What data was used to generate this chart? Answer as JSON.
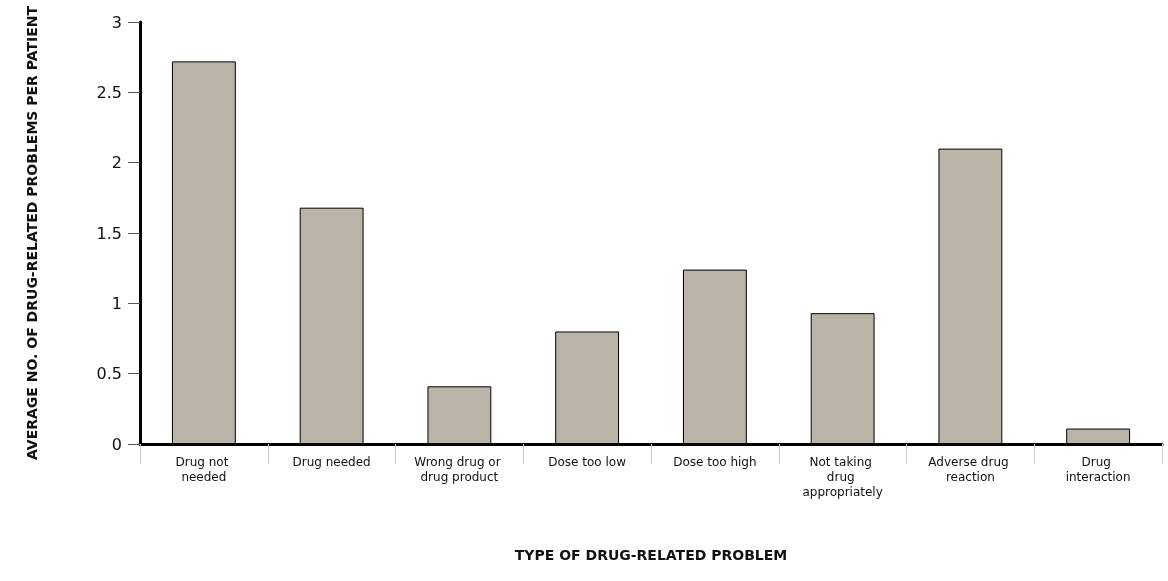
{
  "chart_data": {
    "type": "bar",
    "categories": [
      "Drug not needed",
      "Drug needed",
      "Wrong drug or drug product",
      "Dose too low",
      "Dose too high",
      "Not taking drug appropriately",
      "Adverse drug reaction",
      "Drug interaction"
    ],
    "values": [
      2.72,
      1.68,
      0.41,
      0.8,
      1.24,
      0.93,
      2.1,
      0.11
    ],
    "color": "#bbb3a7",
    "xlabel": "TYPE OF DRUG-RELATED PROBLEM",
    "ylabel": "AVERAGE NO. OF DRUG-RELATED PROBLEMS PER PATIENT",
    "ylim": [
      0,
      3
    ],
    "yticks": [
      0,
      0.5,
      1,
      1.5,
      2,
      2.5,
      3
    ],
    "grid": false
  }
}
